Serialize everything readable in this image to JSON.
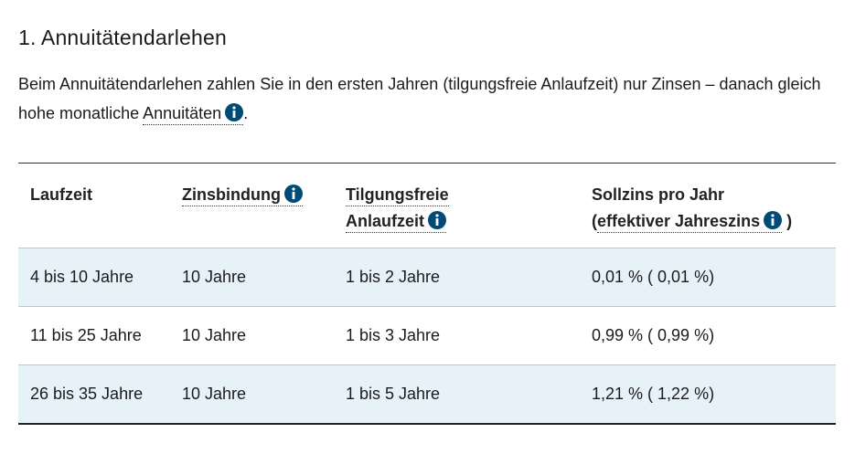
{
  "header": {
    "title": "1. Annuitätendarlehen"
  },
  "intro": {
    "text": "Beim Annuitätendarlehen zahlen Sie in den ersten Jahren (tilgungsfreie Anlaufzeit) nur Zinsen – danach gleich hohe monatliche",
    "link": "Annuitäten",
    "end": "."
  },
  "table": {
    "columns": [
      "Laufzeit",
      "Zinsbindung",
      "Tilgungsfreie Anlaufzeit",
      "Sollzins pro Jahr"
    ],
    "column_note": {
      "open": "(",
      "link": "effektiver Jahreszins",
      "close": ")"
    },
    "rows": [
      [
        "4 bis 10 Jahre",
        "10 Jahre",
        "1 bis 2 Jahre",
        "0,01 % ( 0,01 %)"
      ],
      [
        "11 bis 25 Jahre",
        "10 Jahre",
        "1 bis 3 Jahre",
        "0,99 % ( 0,99 %)"
      ],
      [
        "26 bis 35 Jahre",
        "10 Jahre",
        "1 bis 5 Jahre",
        "1,21 % ( 1,22 %)"
      ]
    ]
  }
}
